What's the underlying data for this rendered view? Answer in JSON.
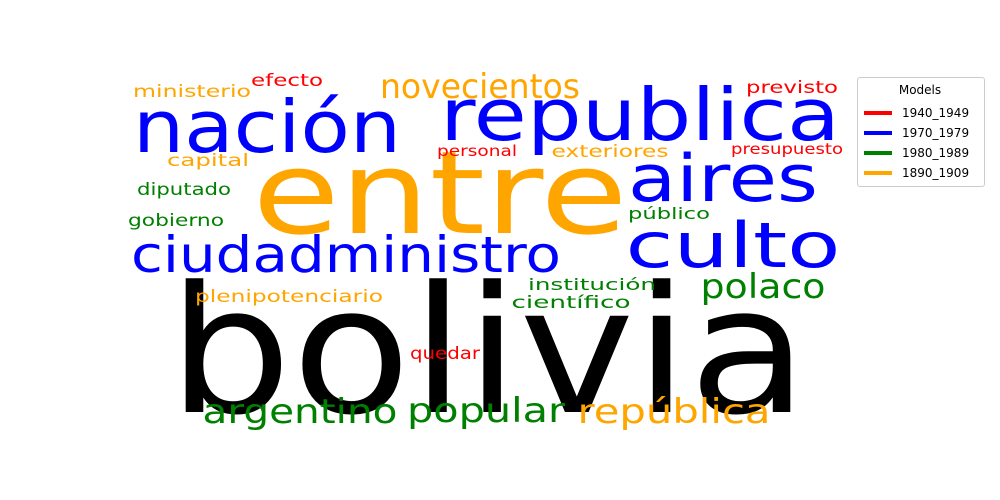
{
  "chart_data": {
    "type": "wordcloud",
    "legend": {
      "title": "Models",
      "placement": "top-right",
      "entries": [
        {
          "label": "1940_1949",
          "color": "#ff0000"
        },
        {
          "label": "1970_1979",
          "color": "#0000ff"
        },
        {
          "label": "1980_1989",
          "color": "#008000"
        },
        {
          "label": "1890_1909",
          "color": "#ffa500"
        }
      ]
    },
    "words": [
      {
        "text": "bolivia",
        "color": "#000000"
      },
      {
        "text": "entre",
        "color": "#ffa500"
      },
      {
        "text": "nación",
        "color": "#0000ff"
      },
      {
        "text": "republica",
        "color": "#0000ff"
      },
      {
        "text": "aires",
        "color": "#0000ff"
      },
      {
        "text": "culto",
        "color": "#0000ff"
      },
      {
        "text": "ciudadministro",
        "color": "#0000ff"
      },
      {
        "text": "novecientos",
        "color": "#ffa500"
      },
      {
        "text": "argentino",
        "color": "#008000"
      },
      {
        "text": "popular",
        "color": "#008000"
      },
      {
        "text": "república",
        "color": "#ffa500"
      },
      {
        "text": "polaco",
        "color": "#008000"
      },
      {
        "text": "ministerio",
        "color": "#ffa500"
      },
      {
        "text": "efecto",
        "color": "#ff0000"
      },
      {
        "text": "previsto",
        "color": "#ff0000"
      },
      {
        "text": "capital",
        "color": "#ffa500"
      },
      {
        "text": "personal",
        "color": "#ff0000"
      },
      {
        "text": "exteriores",
        "color": "#ffa500"
      },
      {
        "text": "presupuesto",
        "color": "#ff0000"
      },
      {
        "text": "diputado",
        "color": "#008000"
      },
      {
        "text": "gobierno",
        "color": "#008000"
      },
      {
        "text": "público",
        "color": "#008000"
      },
      {
        "text": "institución",
        "color": "#008000"
      },
      {
        "text": "científico",
        "color": "#008000"
      },
      {
        "text": "plenipotenciario",
        "color": "#ffa500"
      },
      {
        "text": "quedar",
        "color": "#ff0000"
      }
    ]
  }
}
